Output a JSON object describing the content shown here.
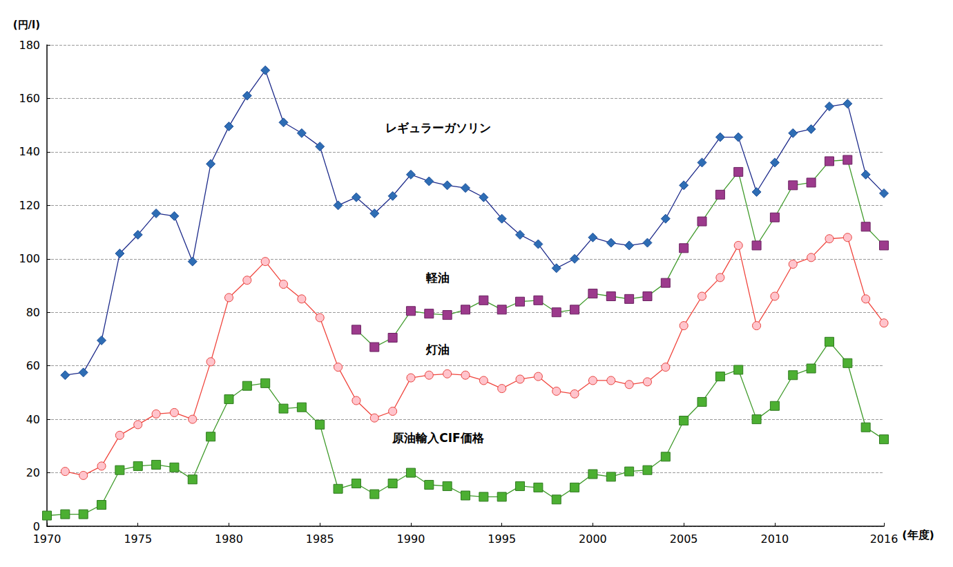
{
  "chart_data": {
    "type": "line",
    "x_label": "(年度)",
    "y_label": "(円/l)",
    "x": [
      1970,
      1971,
      1972,
      1973,
      1974,
      1975,
      1976,
      1977,
      1978,
      1979,
      1980,
      1981,
      1982,
      1983,
      1984,
      1985,
      1986,
      1987,
      1988,
      1989,
      1990,
      1991,
      1992,
      1993,
      1994,
      1995,
      1996,
      1997,
      1998,
      1999,
      2000,
      2001,
      2002,
      2003,
      2004,
      2005,
      2006,
      2007,
      2008,
      2009,
      2010,
      2011,
      2012,
      2013,
      2014,
      2015,
      2016
    ],
    "xlim": [
      1970,
      2016
    ],
    "xticks": [
      1970,
      1975,
      1980,
      1985,
      1990,
      1995,
      2000,
      2005,
      2010,
      2016
    ],
    "ylim": [
      0,
      180
    ],
    "yticks": [
      0,
      20,
      40,
      60,
      80,
      100,
      120,
      140,
      160,
      180
    ],
    "grid": true,
    "series": [
      {
        "name": "レギュラーガソリン",
        "color": "#2e6db4",
        "marker": "diamond",
        "line_style": "solid",
        "values": [
          null,
          56.5,
          57.5,
          69.5,
          102,
          109,
          117,
          116,
          99,
          135.5,
          149.5,
          161,
          170.5,
          151,
          147,
          142,
          120,
          123,
          117,
          123.5,
          131.5,
          129,
          127.5,
          126.5,
          123,
          115,
          109,
          105.5,
          96.5,
          100,
          108,
          106,
          105,
          106,
          115,
          127.5,
          136,
          145.5,
          145.5,
          125,
          136,
          147,
          148.5,
          157,
          158,
          131.5,
          124.5
        ]
      },
      {
        "name": "軽油",
        "color": "#9c3a8c",
        "marker": "square",
        "line_style": "solid",
        "values": [
          null,
          null,
          null,
          null,
          null,
          null,
          null,
          null,
          null,
          null,
          null,
          null,
          null,
          null,
          null,
          null,
          null,
          73.5,
          67,
          70.5,
          80.5,
          79.5,
          79,
          81,
          84.5,
          81,
          84,
          84.5,
          80,
          81,
          87,
          86,
          85,
          86,
          91,
          104,
          114,
          124,
          132.5,
          105,
          115.5,
          127.5,
          128.5,
          136.5,
          137,
          112,
          105
        ]
      },
      {
        "name": "灯油",
        "color": "#e8413c",
        "marker": "circle",
        "line_style": "solid",
        "values": [
          null,
          20.5,
          19,
          22.5,
          34,
          38,
          42,
          42.5,
          40,
          61.5,
          85.5,
          92,
          99,
          90.5,
          85,
          78,
          59.5,
          47,
          40.5,
          43,
          55.5,
          56.5,
          57,
          56.5,
          54.5,
          51.5,
          55,
          56,
          50.5,
          49.5,
          54.5,
          54.5,
          53,
          54,
          59.5,
          75,
          86,
          93,
          105,
          75,
          86,
          98,
          100.5,
          107.5,
          108,
          85,
          76
        ]
      },
      {
        "name": "原油輸入CIF価格",
        "color": "#4caf32",
        "marker": "square",
        "line_style": "solid",
        "values": [
          4,
          4.5,
          4.5,
          8,
          21,
          22.5,
          23,
          22,
          17.5,
          33.5,
          47.5,
          52.5,
          53.5,
          44,
          44.5,
          38,
          14,
          16,
          12,
          16,
          20,
          15.5,
          15,
          11.5,
          11,
          11,
          15,
          14.5,
          10,
          14.5,
          19.5,
          18.5,
          20.5,
          21,
          26,
          39.5,
          46.5,
          56,
          58.5,
          40,
          45,
          56.5,
          59,
          69,
          61,
          37,
          32.5
        ]
      }
    ]
  }
}
